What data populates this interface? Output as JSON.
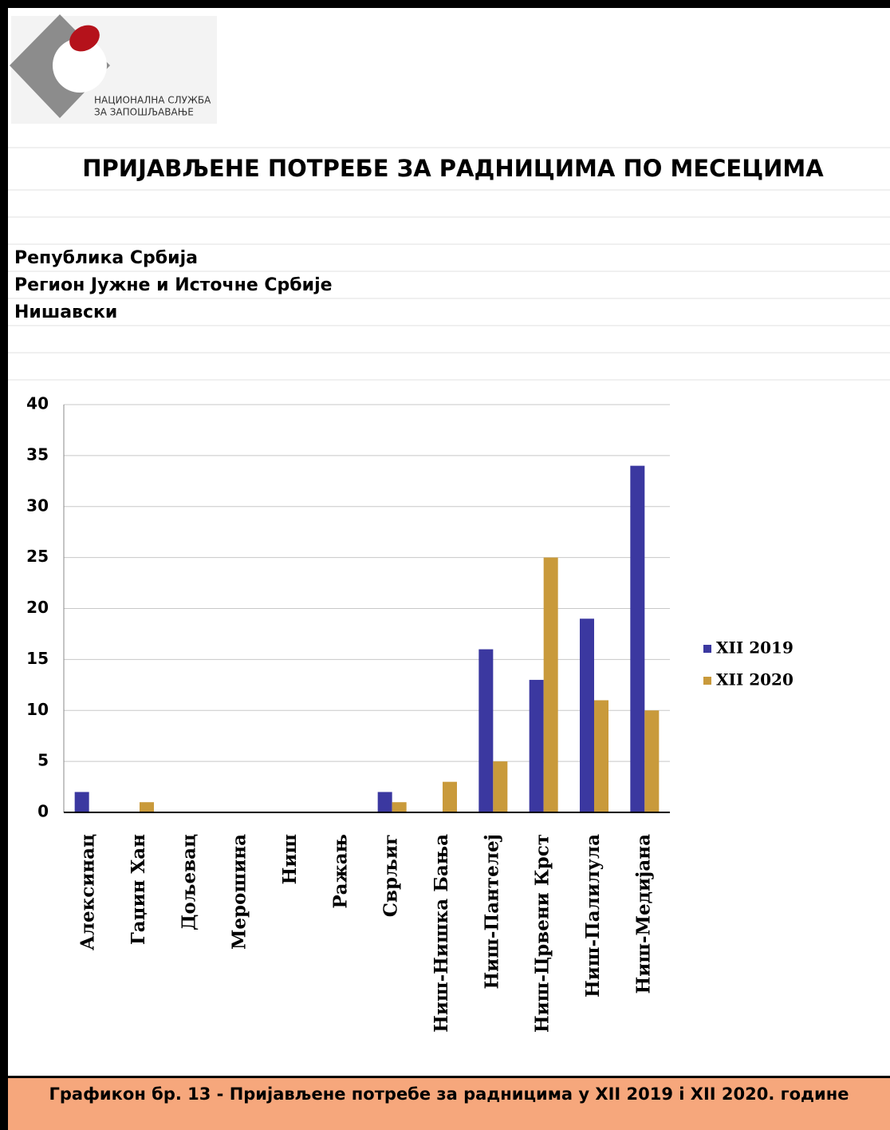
{
  "header": {
    "logo_text": [
      "НАЦИОНАЛНА СЛУЖБА",
      "ЗА ЗАПОШЉАВАЊЕ"
    ],
    "title": "ПРИЈАВЉЕНЕ ПОТРЕБЕ ЗА РАДНИЦИМА ПО МЕСЕЦИМА",
    "regions": [
      "Република Србија",
      "Регион Јужне и Источне Србије",
      "Нишавски"
    ]
  },
  "chart_data": {
    "type": "bar",
    "categories": [
      "Алексинац",
      "Гаџин Хан",
      "Дољевац",
      "Мерошина",
      "Ниш",
      "Ражањ",
      "Сврљиг",
      "Ниш-Нишка Бања",
      "Ниш-Пантелеј",
      "Ниш-Црвени Крст",
      "Ниш-Палилула",
      "Ниш-Медијана"
    ],
    "series": [
      {
        "name": "XII 2019",
        "color": "#3b38a0",
        "values": [
          2,
          0,
          0,
          0,
          0,
          0,
          2,
          0,
          16,
          13,
          19,
          34
        ]
      },
      {
        "name": "XII 2020",
        "color": "#c99a3b",
        "values": [
          0,
          1,
          0,
          0,
          0,
          0,
          1,
          3,
          5,
          25,
          11,
          10
        ]
      }
    ],
    "ylim": [
      0,
      40
    ],
    "yticks": [
      0,
      5,
      10,
      15,
      20,
      25,
      30,
      35,
      40
    ],
    "grid": true,
    "legend": "right"
  },
  "footer": {
    "caption": "Графикон бр. 13 - Пријављене потребе за радницима у XII 2019 i XII 2020. године"
  }
}
